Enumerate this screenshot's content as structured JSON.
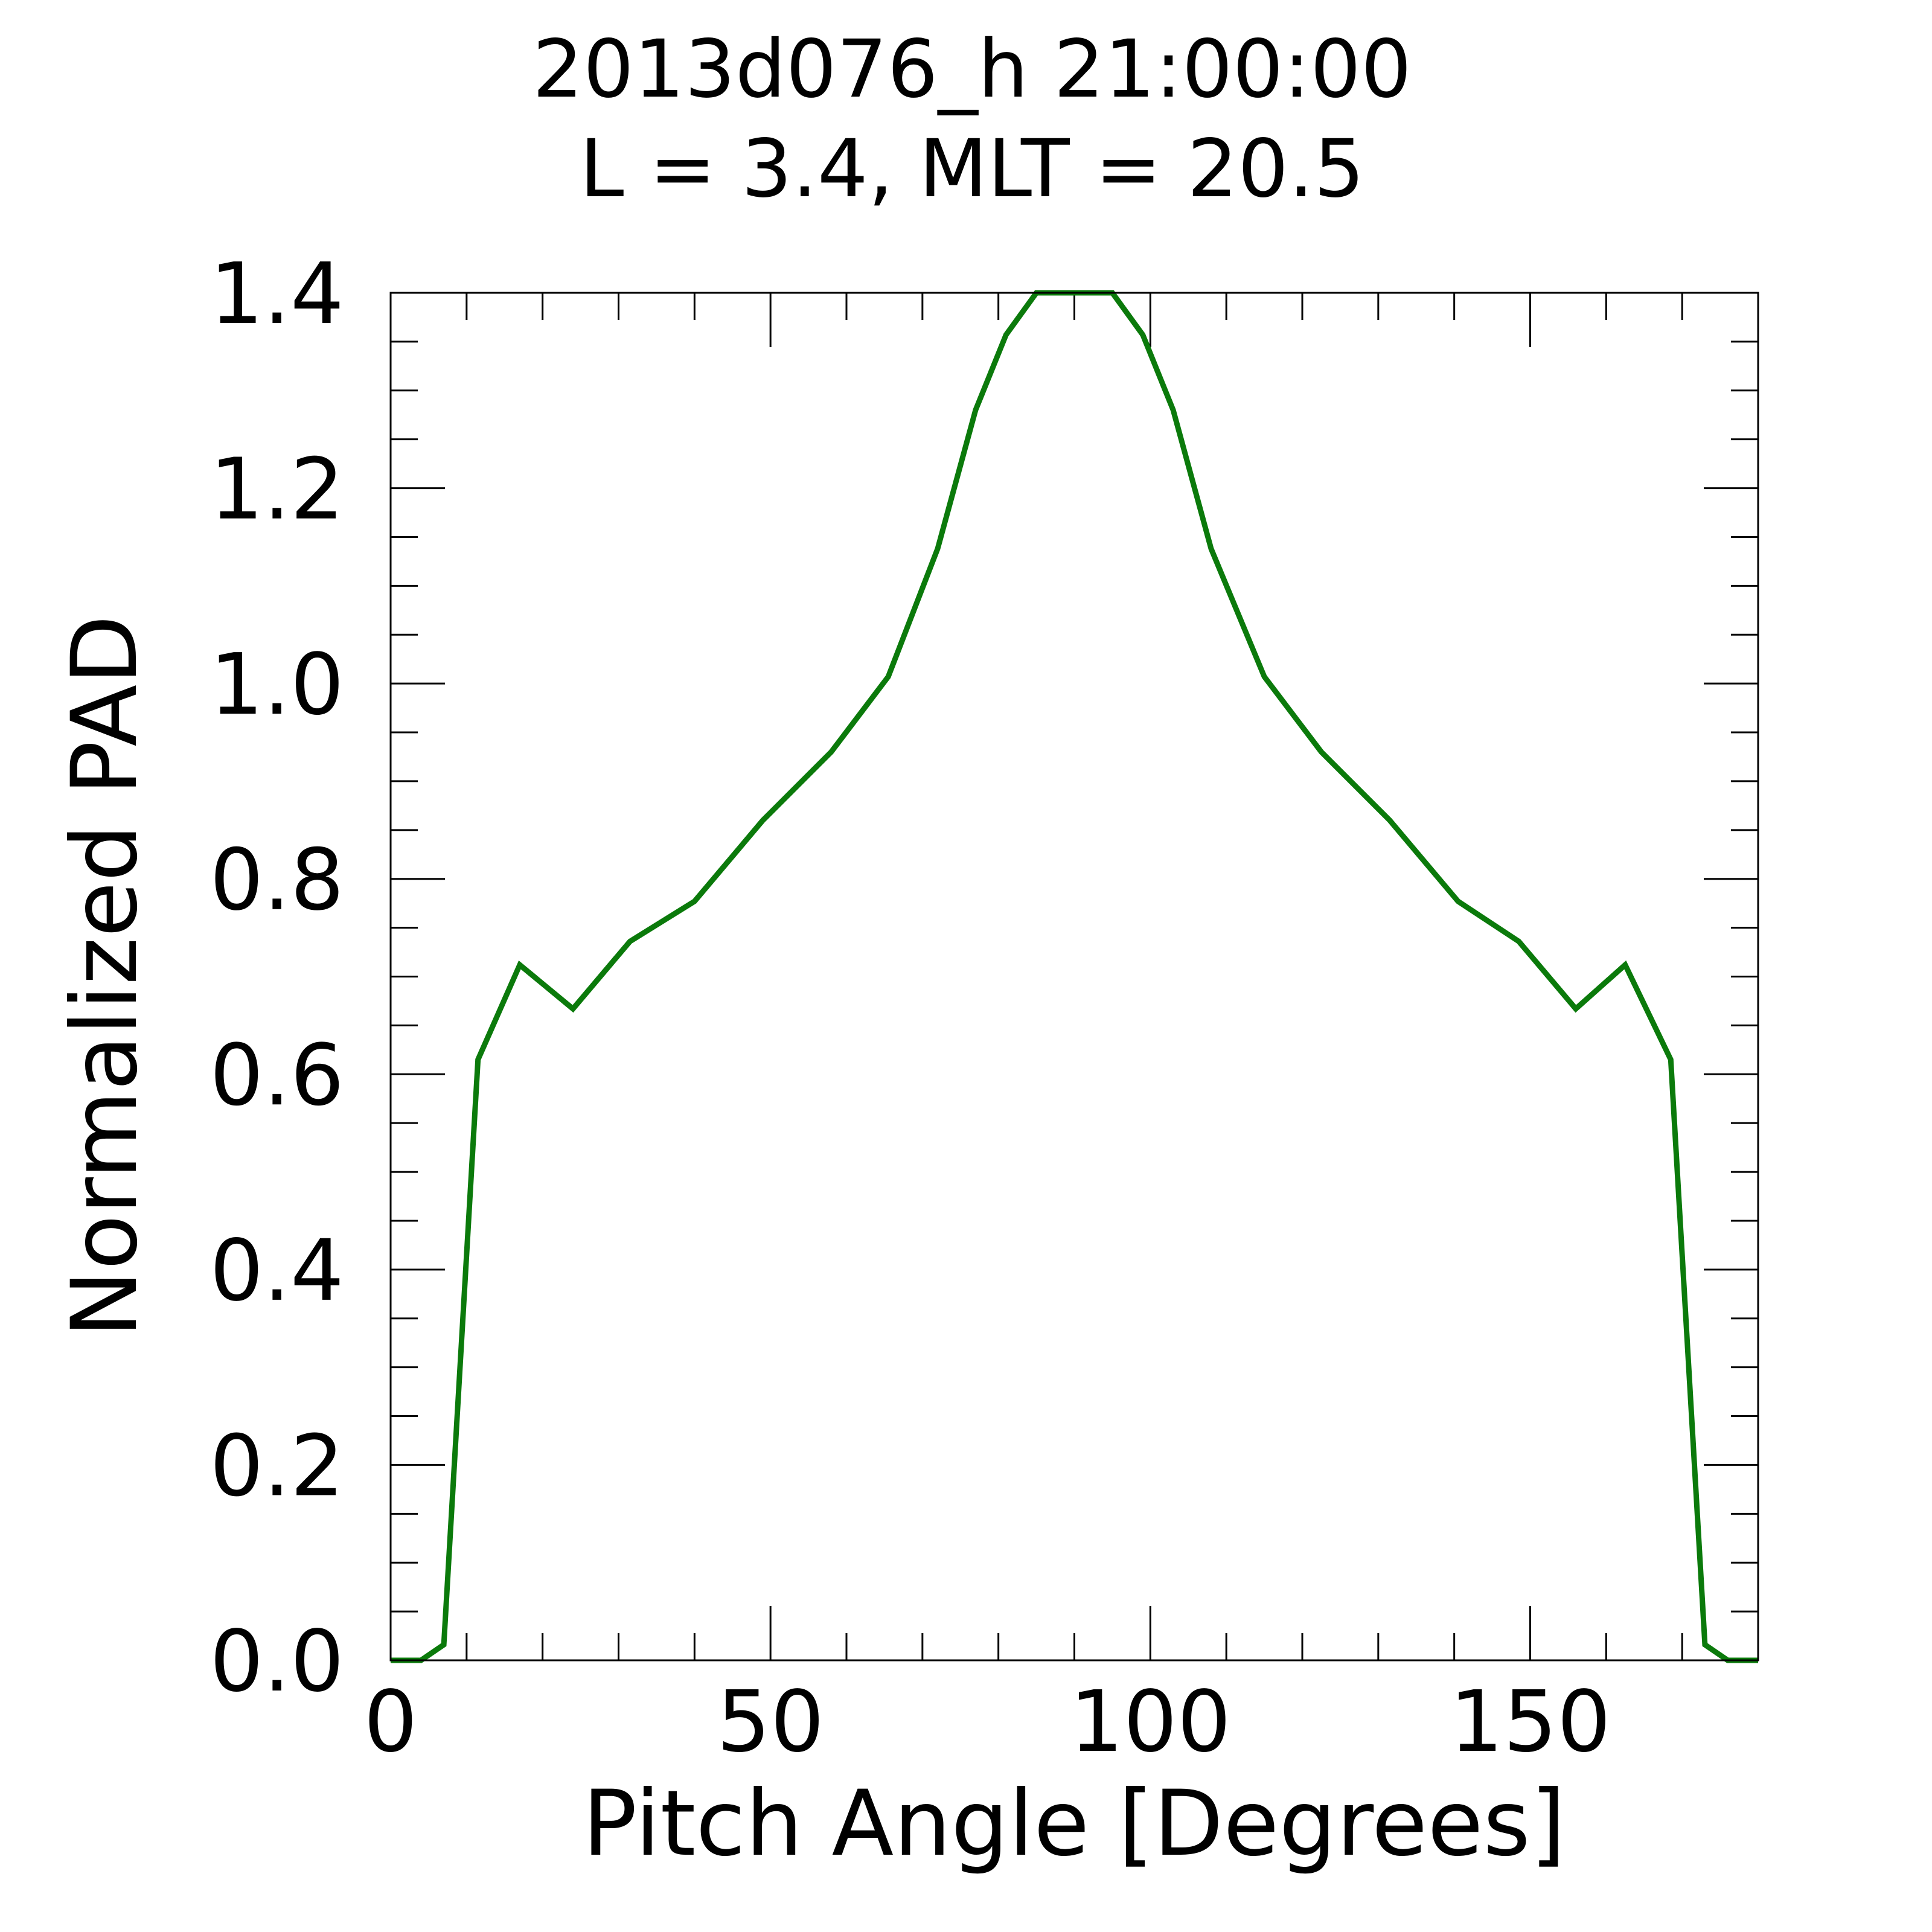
{
  "chart_data": {
    "type": "line",
    "title_line1": "2013d076_h  21:00:00",
    "title_line2": "L = 3.4, MLT = 20.5",
    "xlabel": "Pitch Angle [Degrees]",
    "ylabel": "Normalized PAD",
    "xlim": [
      0,
      180
    ],
    "ylim": [
      0,
      1.4
    ],
    "x_major_ticks": [
      0,
      50,
      100,
      150
    ],
    "x_tick_labels": [
      "0",
      "50",
      "100",
      "150"
    ],
    "x_minor_step": 10,
    "y_major_ticks": [
      0,
      0.2,
      0.4,
      0.6,
      0.8,
      1.0,
      1.2,
      1.4
    ],
    "y_tick_labels": [
      "0.0",
      "0.2",
      "0.4",
      "0.6",
      "0.8",
      "1.0",
      "1.2",
      "1.4"
    ],
    "y_minor_step": 0.05,
    "grid": false,
    "series": [
      {
        "color": "#0b7a0b",
        "x": [
          0,
          4,
          7,
          11.5,
          17,
          24,
          31.5,
          40,
          49,
          58,
          65.5,
          72,
          77,
          81,
          85,
          88,
          92,
          95,
          99,
          103,
          108,
          115,
          122.5,
          131.5,
          140.5,
          148.5,
          156,
          162.5,
          168.5,
          173,
          176,
          180
        ],
        "y": [
          0,
          0,
          0.016,
          0.615,
          0.712,
          0.667,
          0.736,
          0.777,
          0.86,
          0.93,
          1.007,
          1.138,
          1.28,
          1.357,
          1.4,
          1.4,
          1.4,
          1.4,
          1.357,
          1.28,
          1.138,
          1.007,
          0.93,
          0.86,
          0.777,
          0.736,
          0.667,
          0.712,
          0.615,
          0.016,
          0,
          0
        ]
      }
    ]
  }
}
